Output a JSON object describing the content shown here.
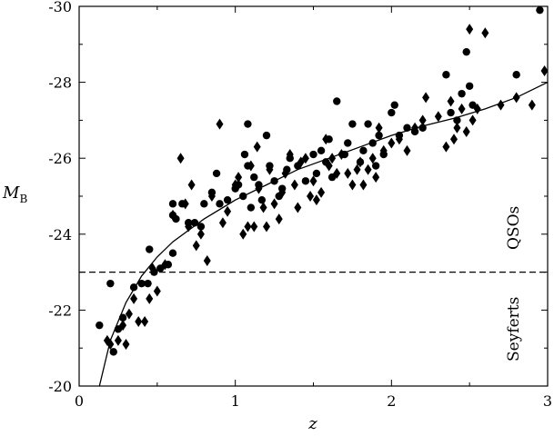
{
  "chart_data": {
    "type": "scatter",
    "xlabel": "z",
    "ylabel": "M",
    "ylabel_subscript": "B",
    "xlim": [
      0,
      3
    ],
    "ylim": [
      -20,
      -30
    ],
    "y_inverted": true,
    "x_ticks": [
      0,
      1,
      2,
      3
    ],
    "x_tick_labels": [
      "0",
      "1",
      "2",
      "3"
    ],
    "y_ticks": [
      -20,
      -22,
      -24,
      -26,
      -28,
      -30
    ],
    "y_tick_labels": [
      "-20",
      "-22",
      "-24",
      "-26",
      "-28",
      "-30"
    ],
    "grid": false,
    "legend": "none",
    "threshold_line": {
      "y": -23,
      "style": "dashed"
    },
    "annotations": {
      "upper": "QSOs",
      "lower": "Seyferts"
    },
    "series": [
      {
        "marker": "circle",
        "color": "#000000",
        "points": [
          [
            0.13,
            -21.6
          ],
          [
            0.2,
            -22.7
          ],
          [
            0.22,
            -20.9
          ],
          [
            0.25,
            -21.5
          ],
          [
            0.28,
            -21.8
          ],
          [
            0.35,
            -22.6
          ],
          [
            0.4,
            -22.7
          ],
          [
            0.44,
            -22.7
          ],
          [
            0.45,
            -23.6
          ],
          [
            0.48,
            -23.0
          ],
          [
            0.52,
            -23.1
          ],
          [
            0.57,
            -23.2
          ],
          [
            0.6,
            -23.5
          ],
          [
            0.6,
            -24.5
          ],
          [
            0.6,
            -24.8
          ],
          [
            0.62,
            -24.4
          ],
          [
            0.66,
            -24.8
          ],
          [
            0.7,
            -24.3
          ],
          [
            0.74,
            -24.3
          ],
          [
            0.78,
            -24.2
          ],
          [
            0.8,
            -24.8
          ],
          [
            0.85,
            -25.1
          ],
          [
            0.88,
            -25.6
          ],
          [
            0.9,
            -24.8
          ],
          [
            0.95,
            -24.9
          ],
          [
            1.0,
            -25.2
          ],
          [
            1.02,
            -25.3
          ],
          [
            1.05,
            -25.0
          ],
          [
            1.06,
            -26.1
          ],
          [
            1.08,
            -25.8
          ],
          [
            1.08,
            -26.9
          ],
          [
            1.1,
            -24.7
          ],
          [
            1.12,
            -25.5
          ],
          [
            1.15,
            -25.3
          ],
          [
            1.17,
            -24.9
          ],
          [
            1.2,
            -26.6
          ],
          [
            1.22,
            -25.8
          ],
          [
            1.25,
            -25.4
          ],
          [
            1.28,
            -25.0
          ],
          [
            1.3,
            -25.2
          ],
          [
            1.33,
            -25.7
          ],
          [
            1.35,
            -26.0
          ],
          [
            1.4,
            -25.8
          ],
          [
            1.45,
            -25.4
          ],
          [
            1.5,
            -26.1
          ],
          [
            1.52,
            -25.6
          ],
          [
            1.55,
            -26.2
          ],
          [
            1.58,
            -25.9
          ],
          [
            1.6,
            -26.5
          ],
          [
            1.62,
            -25.5
          ],
          [
            1.65,
            -27.5
          ],
          [
            1.7,
            -26.1
          ],
          [
            1.72,
            -26.4
          ],
          [
            1.75,
            -26.9
          ],
          [
            1.8,
            -25.9
          ],
          [
            1.82,
            -26.2
          ],
          [
            1.85,
            -26.9
          ],
          [
            1.88,
            -26.4
          ],
          [
            1.9,
            -25.8
          ],
          [
            1.92,
            -26.6
          ],
          [
            1.95,
            -26.1
          ],
          [
            2.0,
            -27.2
          ],
          [
            2.02,
            -27.4
          ],
          [
            2.05,
            -26.6
          ],
          [
            2.1,
            -26.8
          ],
          [
            2.15,
            -26.7
          ],
          [
            2.2,
            -26.8
          ],
          [
            2.35,
            -28.2
          ],
          [
            2.38,
            -27.2
          ],
          [
            2.42,
            -27.0
          ],
          [
            2.45,
            -27.7
          ],
          [
            2.48,
            -28.8
          ],
          [
            2.5,
            -27.9
          ],
          [
            2.52,
            -27.4
          ],
          [
            2.8,
            -28.2
          ],
          [
            2.95,
            -29.9
          ]
        ]
      },
      {
        "marker": "diamond",
        "color": "#000000",
        "points": [
          [
            0.18,
            -21.2
          ],
          [
            0.2,
            -21.1
          ],
          [
            0.25,
            -21.2
          ],
          [
            0.28,
            -21.6
          ],
          [
            0.3,
            -21.1
          ],
          [
            0.32,
            -21.9
          ],
          [
            0.35,
            -22.3
          ],
          [
            0.38,
            -21.7
          ],
          [
            0.42,
            -21.7
          ],
          [
            0.45,
            -22.3
          ],
          [
            0.47,
            -23.1
          ],
          [
            0.5,
            -22.5
          ],
          [
            0.55,
            -23.2
          ],
          [
            0.6,
            -24.5
          ],
          [
            0.65,
            -26.0
          ],
          [
            0.68,
            -24.8
          ],
          [
            0.7,
            -24.2
          ],
          [
            0.72,
            -25.3
          ],
          [
            0.75,
            -23.7
          ],
          [
            0.78,
            -24.0
          ],
          [
            0.82,
            -23.3
          ],
          [
            0.85,
            -25.0
          ],
          [
            0.9,
            -26.9
          ],
          [
            0.92,
            -24.3
          ],
          [
            0.95,
            -24.6
          ],
          [
            1.0,
            -25.3
          ],
          [
            1.02,
            -25.5
          ],
          [
            1.05,
            -24.0
          ],
          [
            1.08,
            -24.2
          ],
          [
            1.1,
            -25.8
          ],
          [
            1.12,
            -24.2
          ],
          [
            1.14,
            -26.3
          ],
          [
            1.15,
            -25.2
          ],
          [
            1.18,
            -24.7
          ],
          [
            1.2,
            -24.2
          ],
          [
            1.22,
            -25.7
          ],
          [
            1.25,
            -24.8
          ],
          [
            1.28,
            -24.4
          ],
          [
            1.3,
            -25.1
          ],
          [
            1.32,
            -25.6
          ],
          [
            1.35,
            -26.1
          ],
          [
            1.38,
            -25.3
          ],
          [
            1.4,
            -24.7
          ],
          [
            1.42,
            -25.9
          ],
          [
            1.45,
            -26.0
          ],
          [
            1.48,
            -25.0
          ],
          [
            1.5,
            -25.4
          ],
          [
            1.52,
            -24.9
          ],
          [
            1.55,
            -25.1
          ],
          [
            1.58,
            -26.5
          ],
          [
            1.6,
            -25.8
          ],
          [
            1.62,
            -26.0
          ],
          [
            1.65,
            -25.6
          ],
          [
            1.68,
            -26.1
          ],
          [
            1.72,
            -25.6
          ],
          [
            1.75,
            -25.3
          ],
          [
            1.78,
            -25.7
          ],
          [
            1.8,
            -25.9
          ],
          [
            1.82,
            -25.3
          ],
          [
            1.85,
            -25.7
          ],
          [
            1.88,
            -26.0
          ],
          [
            1.9,
            -25.5
          ],
          [
            1.92,
            -26.8
          ],
          [
            1.95,
            -26.2
          ],
          [
            2.0,
            -26.4
          ],
          [
            2.05,
            -26.5
          ],
          [
            2.1,
            -26.2
          ],
          [
            2.15,
            -26.8
          ],
          [
            2.2,
            -27.0
          ],
          [
            2.22,
            -27.6
          ],
          [
            2.3,
            -27.1
          ],
          [
            2.35,
            -26.3
          ],
          [
            2.38,
            -27.5
          ],
          [
            2.4,
            -26.5
          ],
          [
            2.42,
            -26.8
          ],
          [
            2.45,
            -27.3
          ],
          [
            2.48,
            -26.7
          ],
          [
            2.5,
            -29.4
          ],
          [
            2.52,
            -27.0
          ],
          [
            2.55,
            -27.3
          ],
          [
            2.6,
            -29.3
          ],
          [
            2.7,
            -27.4
          ],
          [
            2.8,
            -27.6
          ],
          [
            2.9,
            -27.4
          ],
          [
            2.98,
            -28.3
          ]
        ]
      },
      {
        "marker": "none",
        "line": "solid",
        "color": "#000000",
        "points": [
          [
            0.13,
            -20.0
          ],
          [
            0.2,
            -21.2
          ],
          [
            0.3,
            -22.2
          ],
          [
            0.4,
            -22.9
          ],
          [
            0.5,
            -23.4
          ],
          [
            0.6,
            -23.8
          ],
          [
            0.7,
            -24.1
          ],
          [
            0.8,
            -24.4
          ],
          [
            1.0,
            -24.9
          ],
          [
            1.2,
            -25.3
          ],
          [
            1.4,
            -25.7
          ],
          [
            1.6,
            -26.0
          ],
          [
            1.8,
            -26.3
          ],
          [
            2.0,
            -26.6
          ],
          [
            2.2,
            -26.85
          ],
          [
            2.4,
            -27.05
          ],
          [
            2.6,
            -27.3
          ],
          [
            2.8,
            -27.6
          ],
          [
            3.0,
            -28.0
          ]
        ]
      }
    ]
  }
}
